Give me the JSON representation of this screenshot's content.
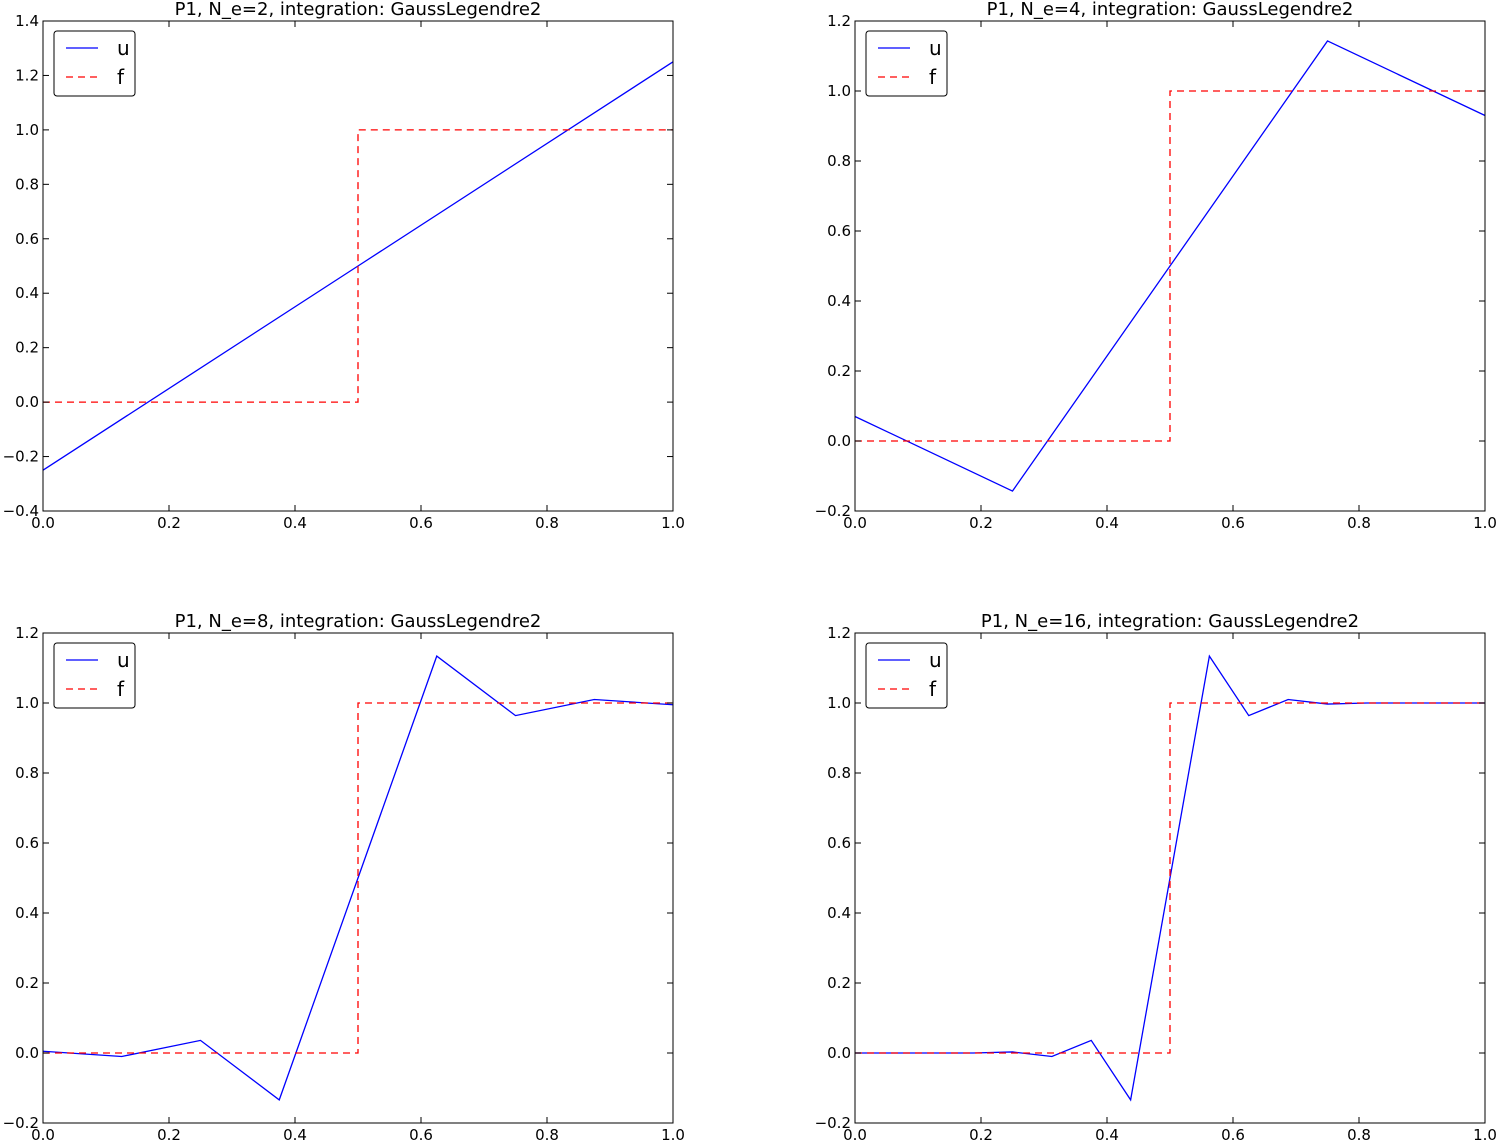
{
  "chart_data": [
    {
      "type": "line",
      "title": "P1, N_e=2, integration: GaussLegendre2",
      "xlim": [
        0,
        1
      ],
      "ylim": [
        -0.4,
        1.4
      ],
      "xticks": [
        "0.0",
        "0.2",
        "0.4",
        "0.6",
        "0.8",
        "1.0"
      ],
      "yticks": [
        "−0.4",
        "−0.2",
        "0.0",
        "0.2",
        "0.4",
        "0.6",
        "0.8",
        "1.0",
        "1.2",
        "1.4"
      ],
      "legend": "top-left",
      "grid": false,
      "series": [
        {
          "name": "u",
          "color": "#0000ff",
          "style": "solid",
          "x": [
            0,
            0.5,
            1
          ],
          "y": [
            -0.25,
            0.5,
            1.25
          ]
        },
        {
          "name": "f",
          "color": "#ff0000",
          "style": "dashed",
          "x": [
            0,
            0.5,
            0.5,
            1
          ],
          "y": [
            0,
            0,
            1,
            1
          ]
        }
      ]
    },
    {
      "type": "line",
      "title": "P1, N_e=4, integration: GaussLegendre2",
      "xlim": [
        0,
        1
      ],
      "ylim": [
        -0.2,
        1.2
      ],
      "xticks": [
        "0.0",
        "0.2",
        "0.4",
        "0.6",
        "0.8",
        "1.0"
      ],
      "yticks": [
        "−0.2",
        "0.0",
        "0.2",
        "0.4",
        "0.6",
        "0.8",
        "1.0",
        "1.2"
      ],
      "legend": "top-left",
      "grid": false,
      "series": [
        {
          "name": "u",
          "color": "#0000ff",
          "style": "solid",
          "x": [
            0,
            0.25,
            0.5,
            0.75,
            1
          ],
          "y": [
            0.07,
            -0.143,
            0.5,
            1.143,
            0.93
          ]
        },
        {
          "name": "f",
          "color": "#ff0000",
          "style": "dashed",
          "x": [
            0,
            0.5,
            0.5,
            1
          ],
          "y": [
            0,
            0,
            1,
            1
          ]
        }
      ]
    },
    {
      "type": "line",
      "title": "P1, N_e=8, integration: GaussLegendre2",
      "xlim": [
        0,
        1
      ],
      "ylim": [
        -0.2,
        1.2
      ],
      "xticks": [
        "0.0",
        "0.2",
        "0.4",
        "0.6",
        "0.8",
        "1.0"
      ],
      "yticks": [
        "−0.2",
        "0.0",
        "0.2",
        "0.4",
        "0.6",
        "0.8",
        "1.0",
        "1.2"
      ],
      "legend": "top-left",
      "grid": false,
      "series": [
        {
          "name": "u",
          "color": "#0000ff",
          "style": "solid",
          "x": [
            0,
            0.125,
            0.25,
            0.375,
            0.5,
            0.625,
            0.75,
            0.875,
            1
          ],
          "y": [
            0.005,
            -0.01,
            0.036,
            -0.134,
            0.5,
            1.134,
            0.964,
            1.01,
            0.995
          ]
        },
        {
          "name": "f",
          "color": "#ff0000",
          "style": "dashed",
          "x": [
            0,
            0.5,
            0.5,
            1
          ],
          "y": [
            0,
            0,
            1,
            1
          ]
        }
      ]
    },
    {
      "type": "line",
      "title": "P1, N_e=16, integration: GaussLegendre2",
      "xlim": [
        0,
        1
      ],
      "ylim": [
        -0.2,
        1.2
      ],
      "xticks": [
        "0.0",
        "0.2",
        "0.4",
        "0.6",
        "0.8",
        "1.0"
      ],
      "yticks": [
        "−0.2",
        "0.0",
        "0.2",
        "0.4",
        "0.6",
        "0.8",
        "1.0",
        "1.2"
      ],
      "legend": "top-left",
      "grid": false,
      "series": [
        {
          "name": "u",
          "color": "#0000ff",
          "style": "solid",
          "x": [
            0,
            0.0625,
            0.125,
            0.1875,
            0.25,
            0.3125,
            0.375,
            0.4375,
            0.5,
            0.5625,
            0.625,
            0.6875,
            0.75,
            0.8125,
            0.875,
            0.9375,
            1
          ],
          "y": [
            0,
            0,
            0,
            0,
            0.003,
            -0.01,
            0.036,
            -0.134,
            0.5,
            1.134,
            0.964,
            1.01,
            0.997,
            1.0,
            1.0,
            1.0,
            1.0
          ]
        },
        {
          "name": "f",
          "color": "#ff0000",
          "style": "dashed",
          "x": [
            0,
            0.5,
            0.5,
            1
          ],
          "y": [
            0,
            0,
            1,
            1
          ]
        }
      ]
    }
  ]
}
